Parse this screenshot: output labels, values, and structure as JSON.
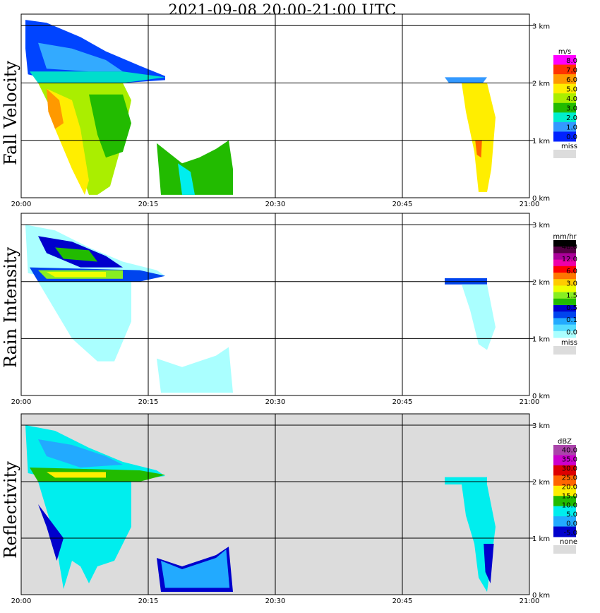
{
  "title": "2021-09-08   20:00-21:00 UTC",
  "colors": {
    "missing": "#dcdcdc",
    "grid": "#000000"
  },
  "chart_data": [
    {
      "type": "heatmap",
      "ylabel": "Fall Velocity",
      "x_ticks": [
        "20:00",
        "20:15",
        "20:30",
        "20:45",
        "21:00"
      ],
      "y_ticks": [
        "0 km",
        "1 km",
        "2 km",
        "3 km"
      ],
      "xlim": [
        "20:00",
        "21:00"
      ],
      "ylim_km": [
        0,
        3.2
      ],
      "grid": true,
      "background": "#ffffff",
      "legend": {
        "unit": "m/s",
        "levels": [
          "8.0",
          "7.0",
          "6.0",
          "5.0",
          "4.0",
          "3.0",
          "2.0",
          "1.0",
          "0.0"
        ],
        "colors": [
          "#ff00ff",
          "#ff3300",
          "#ff9900",
          "#ffee00",
          "#aaee00",
          "#22bb00",
          "#00eecc",
          "#3399ff",
          "#0022ff"
        ],
        "missing_label": "miss"
      }
    },
    {
      "type": "heatmap",
      "ylabel": "Rain Intensity",
      "x_ticks": [
        "20:00",
        "20:15",
        "20:30",
        "20:45",
        "21:00"
      ],
      "y_ticks": [
        "0 km",
        "1 km",
        "2 km",
        "3 km"
      ],
      "xlim": [
        "20:00",
        "21:00"
      ],
      "ylim_km": [
        0,
        3.2
      ],
      "grid": true,
      "background": "#ffffff",
      "legend": {
        "unit": "mm/hr",
        "levels": [
          "48.0",
          "12.0",
          "6.0",
          "3.0",
          "1.5",
          "0.5",
          "0.1",
          "0.0"
        ],
        "colors": [
          "#000000",
          "#550044",
          "#aa0099",
          "#ee00aa",
          "#ff0000",
          "#ff7700",
          "#ffcc00",
          "#eeff00",
          "#88ee22",
          "#22bb00",
          "#0000cc",
          "#0044ee",
          "#22aaff",
          "#55ddff",
          "#aaffff"
        ],
        "missing_label": "miss"
      }
    },
    {
      "type": "heatmap",
      "ylabel": "Reflectivity",
      "x_ticks": [
        "20:00",
        "20:15",
        "20:30",
        "20:45",
        "21:00"
      ],
      "y_ticks": [
        "0 km",
        "1 km",
        "2 km",
        "3 km"
      ],
      "xlim": [
        "20:00",
        "21:00"
      ],
      "ylim_km": [
        0,
        3.2
      ],
      "grid": true,
      "background": "#dcdcdc",
      "legend": {
        "unit": "dBZ",
        "levels": [
          "40.0",
          "35.0",
          "30.0",
          "25.0",
          "20.0",
          "15.0",
          "10.0",
          "5.0",
          "0.0",
          "-5.0"
        ],
        "colors": [
          "#aa44aa",
          "#cc00cc",
          "#dd0000",
          "#ff6600",
          "#ffee00",
          "#22bb00",
          "#00eeee",
          "#22aaff",
          "#0000cc"
        ],
        "missing_label": "none"
      }
    }
  ]
}
